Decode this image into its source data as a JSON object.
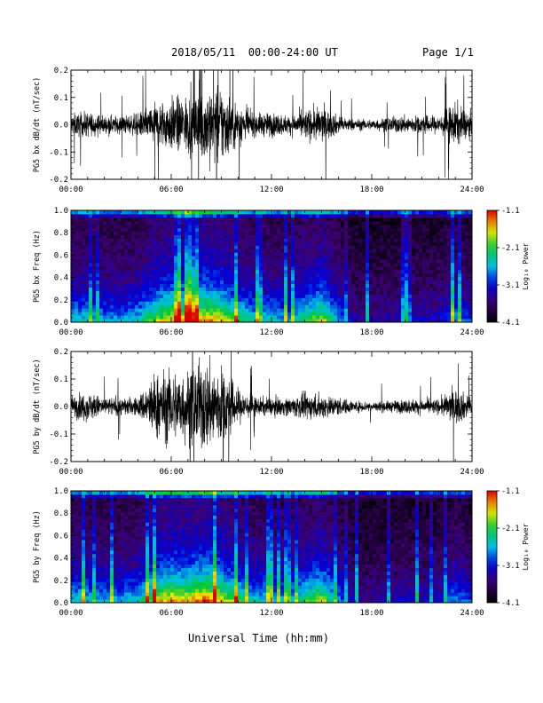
{
  "header": {
    "title": "2018/05/11  00:00-24:00 UT",
    "page": "Page 1/1"
  },
  "x_axis_title": "Universal Time (hh:mm)",
  "colorbar": {
    "label": "Log₁₀ Power",
    "ticks": [
      "-1.1",
      "-2.1",
      "-3.1",
      "-4.1"
    ],
    "range": [
      -4.1,
      -1.1
    ]
  },
  "chart_data": [
    {
      "type": "line",
      "ylabel": "PG5 bx dB/dt (nT/sec)",
      "xlim": [
        "00:00",
        "24:00"
      ],
      "ylim": [
        -0.2,
        0.2
      ],
      "x_ticks": [
        "00:00",
        "06:00",
        "12:00",
        "18:00",
        "24:00"
      ],
      "y_ticks": [
        "0.2",
        "0.1",
        "0.0",
        "-0.1",
        "-0.2"
      ],
      "x_hours": [
        0,
        1,
        2,
        3,
        4,
        5,
        6,
        7,
        8,
        9,
        10,
        11,
        12,
        13,
        14,
        15,
        16,
        17,
        18,
        19,
        20,
        21,
        22,
        23,
        24
      ],
      "envelope": [
        0.06,
        0.07,
        0.05,
        0.05,
        0.06,
        0.12,
        0.15,
        0.16,
        0.22,
        0.22,
        0.12,
        0.06,
        0.07,
        0.05,
        0.08,
        0.1,
        0.05,
        0.03,
        0.03,
        0.04,
        0.05,
        0.05,
        0.05,
        0.12,
        0.06
      ]
    },
    {
      "type": "heatmap",
      "ylabel": "PG5 bx Freq (Hz)",
      "xlim": [
        "00:00",
        "24:00"
      ],
      "ylim": [
        0.0,
        1.0
      ],
      "x_ticks": [
        "00:00",
        "06:00",
        "12:00",
        "18:00",
        "24:00"
      ],
      "y_ticks": [
        "1.0",
        "0.8",
        "0.6",
        "0.4",
        "0.2",
        "0.0"
      ],
      "colorbar_label": "Log₁₀ Power",
      "x_hours": [
        0,
        1,
        2,
        3,
        4,
        5,
        6,
        7,
        8,
        9,
        10,
        11,
        12,
        13,
        14,
        15,
        16,
        17,
        18,
        19,
        20,
        21,
        22,
        23,
        24
      ],
      "activity": [
        0.35,
        0.35,
        0.3,
        0.3,
        0.35,
        0.5,
        0.6,
        0.6,
        0.65,
        0.6,
        0.45,
        0.35,
        0.35,
        0.3,
        0.45,
        0.55,
        0.3,
        0.1,
        0.1,
        0.12,
        0.15,
        0.15,
        0.15,
        0.3,
        0.2
      ]
    },
    {
      "type": "line",
      "ylabel": "PG5 by dB/dt (nT/sec)",
      "xlim": [
        "00:00",
        "24:00"
      ],
      "ylim": [
        -0.2,
        0.2
      ],
      "x_ticks": [
        "00:00",
        "06:00",
        "12:00",
        "18:00",
        "24:00"
      ],
      "y_ticks": [
        "0.2",
        "0.1",
        "0.0",
        "-0.1",
        "-0.2"
      ],
      "x_hours": [
        0,
        1,
        2,
        3,
        4,
        5,
        6,
        7,
        8,
        9,
        10,
        11,
        12,
        13,
        14,
        15,
        16,
        17,
        18,
        19,
        20,
        21,
        22,
        23,
        24
      ],
      "envelope": [
        0.06,
        0.08,
        0.05,
        0.05,
        0.05,
        0.18,
        0.2,
        0.2,
        0.25,
        0.22,
        0.1,
        0.05,
        0.05,
        0.05,
        0.07,
        0.07,
        0.05,
        0.03,
        0.03,
        0.03,
        0.04,
        0.04,
        0.04,
        0.1,
        0.05
      ]
    },
    {
      "type": "heatmap",
      "ylabel": "PG5 by Freq (Hz)",
      "xlim": [
        "00:00",
        "24:00"
      ],
      "ylim": [
        0.0,
        1.0
      ],
      "x_ticks": [
        "00:00",
        "06:00",
        "12:00",
        "18:00",
        "24:00"
      ],
      "y_ticks": [
        "1.0",
        "0.8",
        "0.6",
        "0.4",
        "0.2",
        "0.0"
      ],
      "colorbar_label": "Log₁₀ Power",
      "x_hours": [
        0,
        1,
        2,
        3,
        4,
        5,
        6,
        7,
        8,
        9,
        10,
        11,
        12,
        13,
        14,
        15,
        16,
        17,
        18,
        19,
        20,
        21,
        22,
        23,
        24
      ],
      "activity": [
        0.35,
        0.35,
        0.3,
        0.3,
        0.35,
        0.55,
        0.65,
        0.62,
        0.7,
        0.6,
        0.45,
        0.35,
        0.35,
        0.3,
        0.45,
        0.55,
        0.3,
        0.1,
        0.1,
        0.12,
        0.15,
        0.15,
        0.15,
        0.3,
        0.2
      ]
    }
  ]
}
